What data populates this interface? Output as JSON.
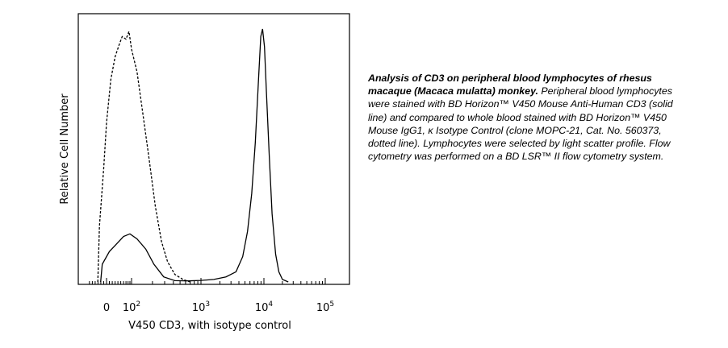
{
  "chart_data": {
    "type": "histogram",
    "xlabel": "V450 CD3, with isotype control",
    "ylabel": "Relative Cell Number",
    "x_scale": "biexponential (log decades)",
    "x_ticks": [
      {
        "base": "0",
        "exp": ""
      },
      {
        "base": "10",
        "exp": "2"
      },
      {
        "base": "10",
        "exp": "3"
      },
      {
        "base": "10",
        "exp": "4"
      },
      {
        "base": "10",
        "exp": "5"
      }
    ],
    "grid": false,
    "legend": "none",
    "series": [
      {
        "style": "solid",
        "points": [
          [
            -15,
            0.07
          ],
          [
            10,
            0.12
          ],
          [
            35,
            0.15
          ],
          [
            60,
            0.18
          ],
          [
            90,
            0.19
          ],
          [
            120,
            0.17
          ],
          [
            160,
            0.13
          ],
          [
            210,
            0.07
          ],
          [
            290,
            0.02
          ],
          [
            420,
            0.005
          ],
          [
            650,
            0.004
          ],
          [
            1000,
            0.006
          ],
          [
            1600,
            0.01
          ],
          [
            2500,
            0.02
          ],
          [
            3600,
            0.04
          ],
          [
            4600,
            0.1
          ],
          [
            5500,
            0.2
          ],
          [
            6400,
            0.35
          ],
          [
            7300,
            0.55
          ],
          [
            8200,
            0.8
          ],
          [
            8900,
            0.97
          ],
          [
            9500,
            1.0
          ],
          [
            10200,
            0.93
          ],
          [
            11000,
            0.75
          ],
          [
            12200,
            0.5
          ],
          [
            13600,
            0.27
          ],
          [
            15500,
            0.11
          ],
          [
            17500,
            0.04
          ],
          [
            20000,
            0.01
          ],
          [
            25000,
            0.0
          ]
        ]
      },
      {
        "style": "dotted",
        "points": [
          [
            -25,
            0.22
          ],
          [
            -10,
            0.45
          ],
          [
            0,
            0.63
          ],
          [
            15,
            0.8
          ],
          [
            30,
            0.89
          ],
          [
            45,
            0.94
          ],
          [
            55,
            0.97
          ],
          [
            70,
            0.96
          ],
          [
            85,
            0.99
          ],
          [
            100,
            0.92
          ],
          [
            120,
            0.83
          ],
          [
            150,
            0.64
          ],
          [
            180,
            0.48
          ],
          [
            220,
            0.3
          ],
          [
            270,
            0.16
          ],
          [
            330,
            0.08
          ],
          [
            420,
            0.03
          ],
          [
            550,
            0.01
          ],
          [
            700,
            0.0
          ]
        ]
      }
    ]
  },
  "caption": {
    "title": "Analysis of CD3 on peripheral blood lymphocytes of rhesus macaque (Macaca mulatta) monkey.",
    "body": " Peripheral blood lymphocytes were stained with BD Horizon™ V450 Mouse Anti-Human CD3 (solid line) and compared to whole blood stained with BD Horizon™ V450 Mouse IgG1, κ Isotype Control (clone MOPC-21, Cat. No. 560373, dotted line). Lymphocytes were selected by light scatter profile. Flow cytometry was performed on a BD LSR™ II flow cytometry system."
  }
}
